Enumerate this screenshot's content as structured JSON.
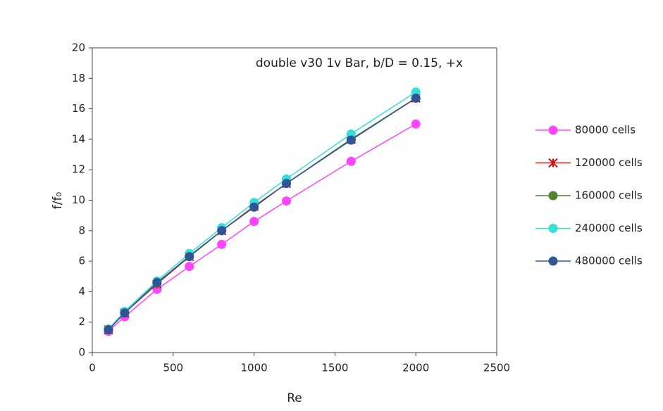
{
  "chart_data": {
    "type": "line",
    "annotation": "double v30 1v Bar, b/D = 0.15, +x",
    "xlabel": "Re",
    "ylabel": "f/f₀",
    "x": [
      100,
      200,
      400,
      600,
      800,
      1000,
      1200,
      1600,
      2000
    ],
    "series": [
      {
        "name": "80000 cells",
        "color": "#ff44ff",
        "marker": "circle",
        "values": [
          1.4,
          2.35,
          4.15,
          5.65,
          7.1,
          8.6,
          9.95,
          12.55,
          15.0
        ]
      },
      {
        "name": "120000 cells",
        "color": "#d01010",
        "marker": "star",
        "values": [
          1.5,
          2.6,
          4.5,
          6.3,
          8.0,
          9.6,
          11.1,
          14.0,
          16.7
        ]
      },
      {
        "name": "160000 cells",
        "color": "#548235",
        "marker": "circle",
        "values": [
          1.5,
          2.6,
          4.55,
          6.35,
          8.0,
          9.55,
          11.1,
          14.0,
          16.7
        ]
      },
      {
        "name": "240000 cells",
        "color": "#33e0d8",
        "marker": "circle",
        "values": [
          1.55,
          2.7,
          4.7,
          6.5,
          8.2,
          9.85,
          11.4,
          14.35,
          17.1
        ]
      },
      {
        "name": "480000 cells",
        "color": "#2f5597",
        "marker": "circle",
        "values": [
          1.5,
          2.6,
          4.6,
          6.3,
          8.0,
          9.55,
          11.1,
          13.95,
          16.7
        ]
      }
    ],
    "xlim": [
      0,
      2500
    ],
    "xticks": [
      0,
      500,
      1000,
      1500,
      2000,
      2500
    ],
    "ylim": [
      0,
      20
    ],
    "yticks": [
      0,
      2,
      4,
      6,
      8,
      10,
      12,
      14,
      16,
      18,
      20
    ],
    "grid": false,
    "legend": "right"
  }
}
